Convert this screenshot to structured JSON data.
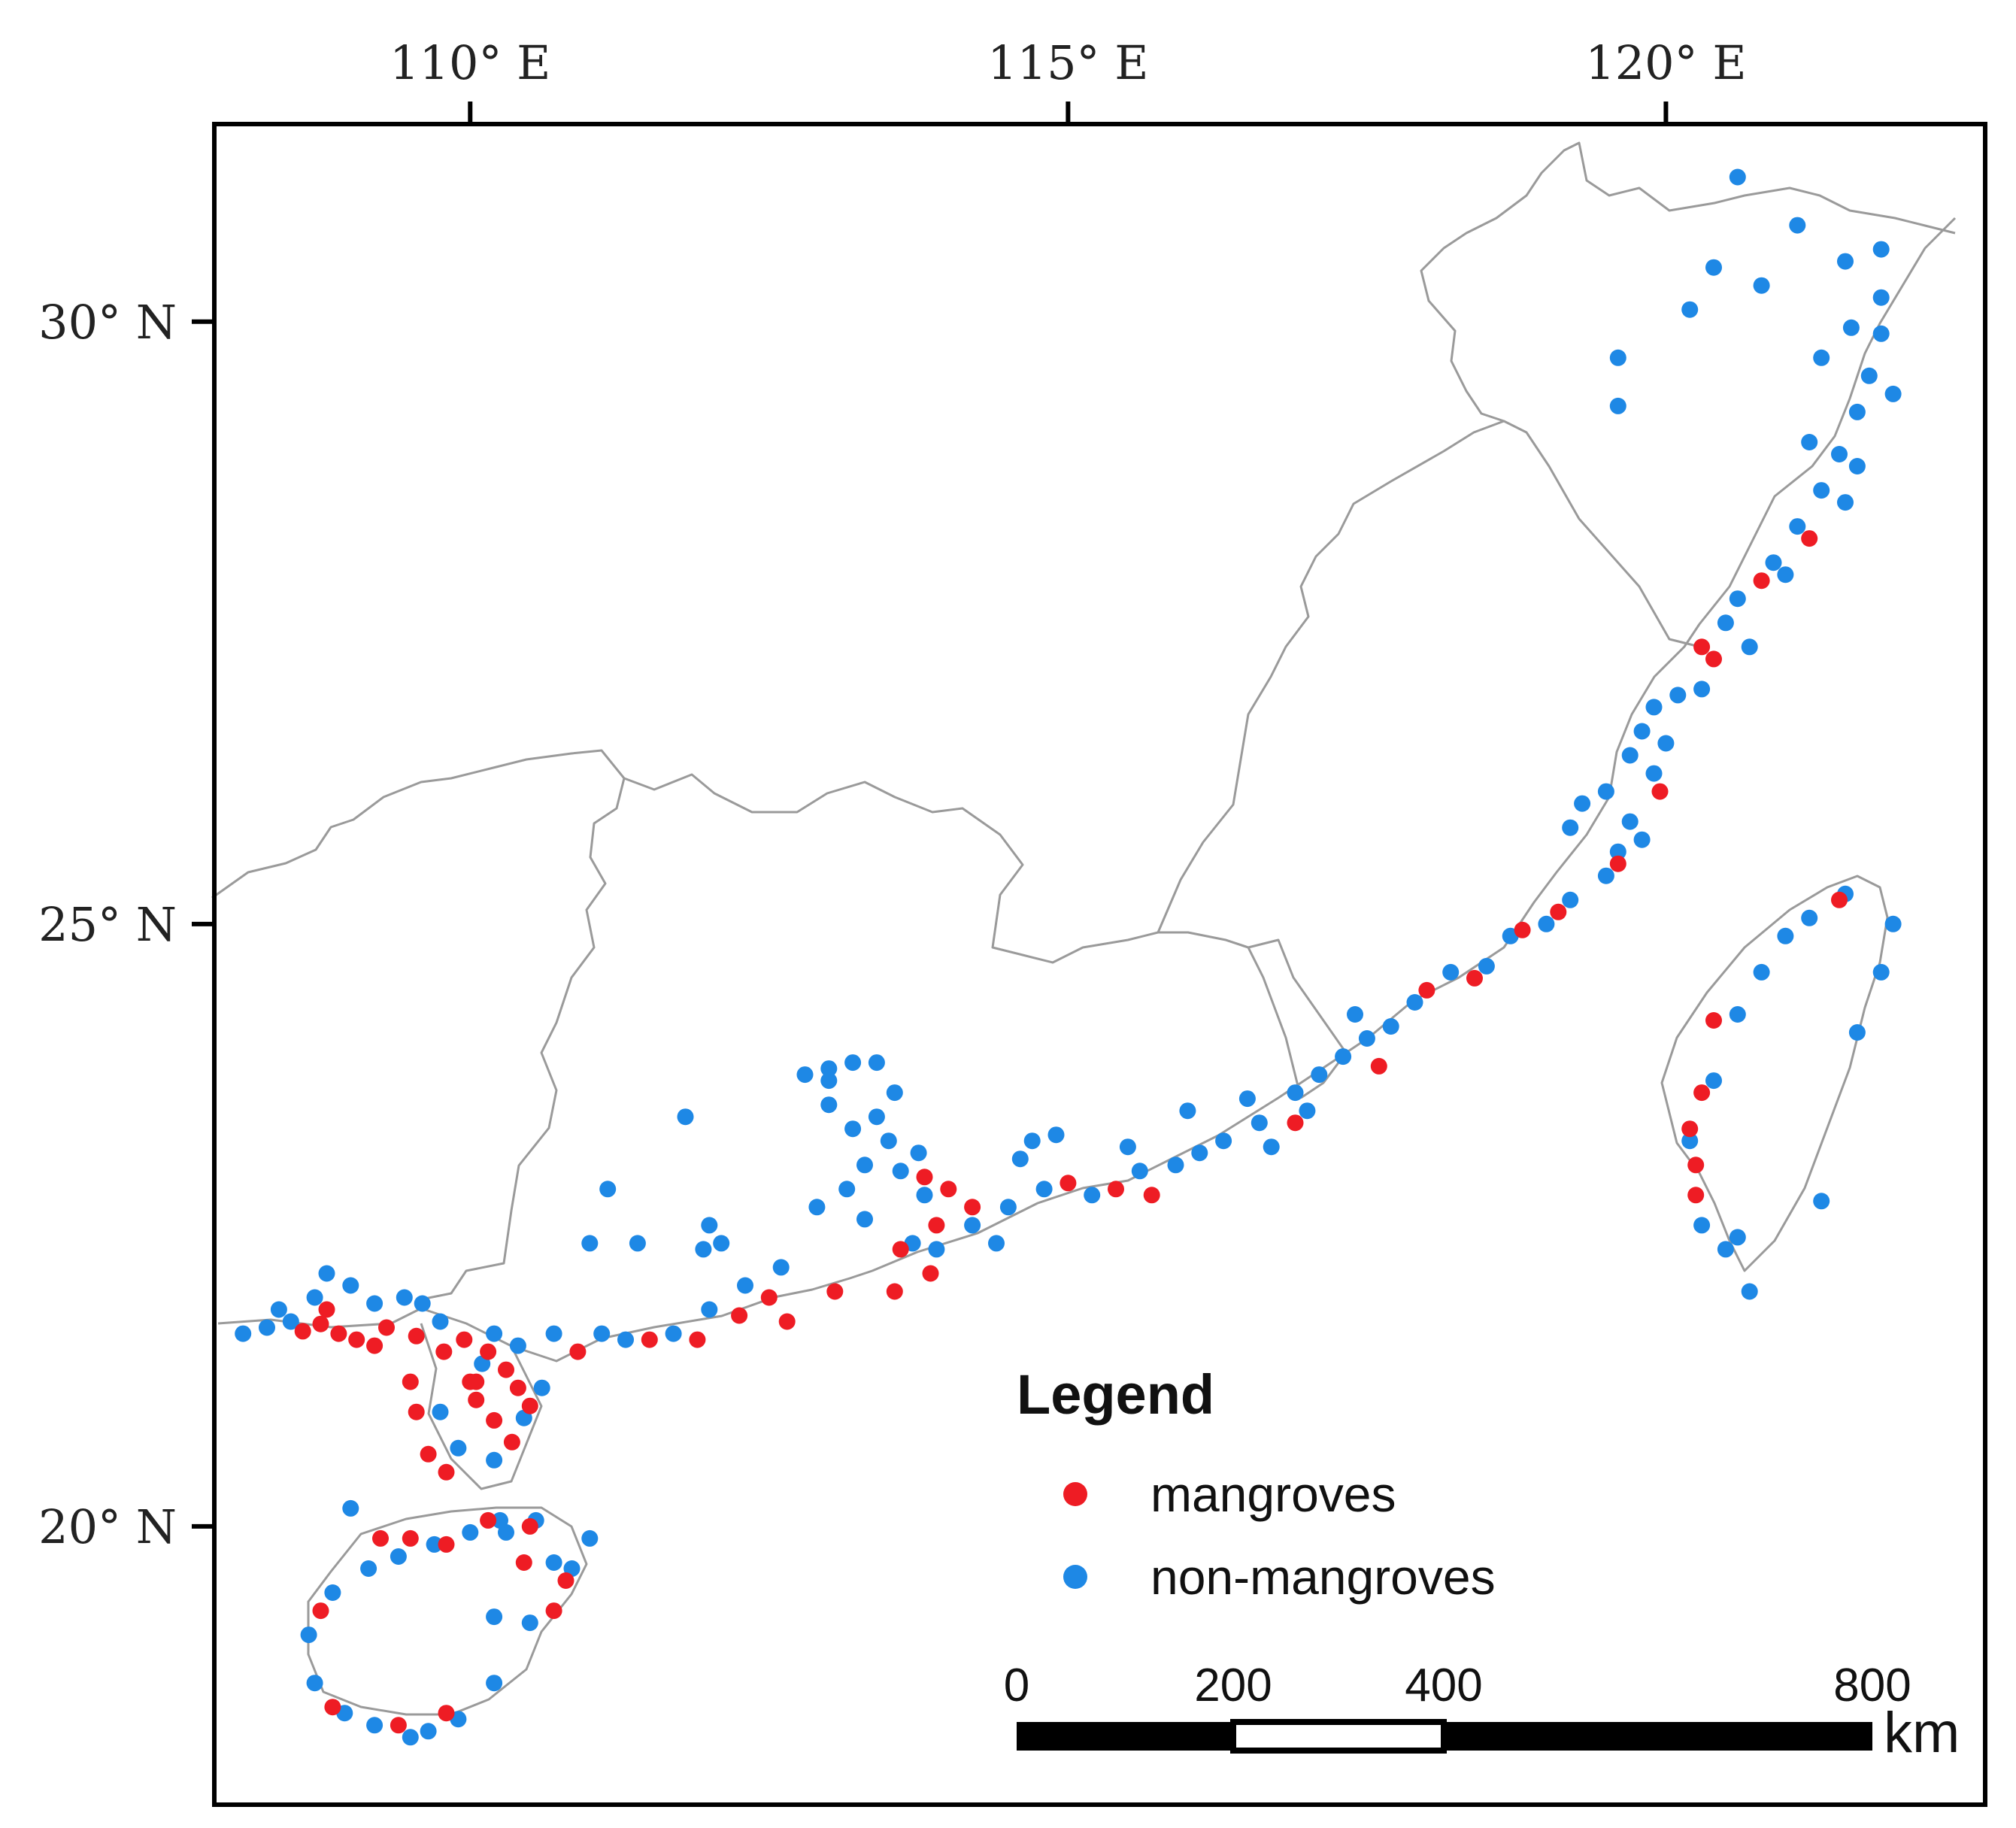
{
  "map": {
    "lon_ticks": [
      {
        "lon": 110,
        "label": "110° E"
      },
      {
        "lon": 115,
        "label": "115° E"
      },
      {
        "lon": 120,
        "label": "120° E"
      }
    ],
    "lat_ticks": [
      {
        "lat": 30,
        "label": "30° N"
      },
      {
        "lat": 25,
        "label": "25° N"
      },
      {
        "lat": 20,
        "label": "20° N"
      }
    ],
    "extent": {
      "lon_min": 107.86,
      "lon_max": 122.67,
      "lat_min": 17.69,
      "lat_max": 31.64
    },
    "colors": {
      "mangroves": "#ee1c24",
      "non_mangroves": "#1e88e5",
      "boundary": "#9a9a9a",
      "frame": "#000000"
    }
  },
  "legend": {
    "title": "Legend",
    "items": [
      {
        "label": "mangroves",
        "color": "#ee1c24"
      },
      {
        "label": "non-mangroves",
        "color": "#1e88e5"
      }
    ]
  },
  "scale_bar": {
    "ticks": [
      "0",
      "200",
      "400",
      "800"
    ],
    "unit": "km"
  },
  "points": {
    "mangroves": [
      [
        108.6,
        21.62
      ],
      [
        108.75,
        21.68
      ],
      [
        108.9,
        21.6
      ],
      [
        109.05,
        21.55
      ],
      [
        109.3,
        21.65
      ],
      [
        109.55,
        21.58
      ],
      [
        109.78,
        21.45
      ],
      [
        110.15,
        21.45
      ],
      [
        109.5,
        21.2
      ],
      [
        109.55,
        20.95
      ],
      [
        109.65,
        20.6
      ],
      [
        109.8,
        20.45
      ],
      [
        110.05,
        21.05
      ],
      [
        110.2,
        20.88
      ],
      [
        110.35,
        20.7
      ],
      [
        110.5,
        21.0
      ],
      [
        110.0,
        21.2
      ],
      [
        110.3,
        21.3
      ],
      [
        110.4,
        21.15
      ],
      [
        109.95,
        21.55
      ],
      [
        110.9,
        21.45
      ],
      [
        111.5,
        21.55
      ],
      [
        111.9,
        21.55
      ],
      [
        112.25,
        21.75
      ],
      [
        112.5,
        21.9
      ],
      [
        112.65,
        21.7
      ],
      [
        113.05,
        21.95
      ],
      [
        113.55,
        21.95
      ],
      [
        113.6,
        22.3
      ],
      [
        113.85,
        22.1
      ],
      [
        113.9,
        22.5
      ],
      [
        114.0,
        22.8
      ],
      [
        113.8,
        22.9
      ],
      [
        114.2,
        22.65
      ],
      [
        115.0,
        22.85
      ],
      [
        115.4,
        22.8
      ],
      [
        115.7,
        22.75
      ],
      [
        116.9,
        23.35
      ],
      [
        117.6,
        23.82
      ],
      [
        118.0,
        24.45
      ],
      [
        118.4,
        24.55
      ],
      [
        118.8,
        24.95
      ],
      [
        119.1,
        25.1
      ],
      [
        119.6,
        25.5
      ],
      [
        119.95,
        26.1
      ],
      [
        120.4,
        27.2
      ],
      [
        120.3,
        27.3
      ],
      [
        120.8,
        27.85
      ],
      [
        121.2,
        28.2
      ],
      [
        121.45,
        25.2
      ],
      [
        120.3,
        23.6
      ],
      [
        120.2,
        23.3
      ],
      [
        120.25,
        23.0
      ],
      [
        120.25,
        22.75
      ],
      [
        120.4,
        24.2
      ],
      [
        109.25,
        19.9
      ],
      [
        109.5,
        19.9
      ],
      [
        109.8,
        19.85
      ],
      [
        110.15,
        20.05
      ],
      [
        110.5,
        20.0
      ],
      [
        110.8,
        19.55
      ],
      [
        110.7,
        19.3
      ],
      [
        108.75,
        19.3
      ],
      [
        108.85,
        18.5
      ],
      [
        109.4,
        18.35
      ],
      [
        109.8,
        18.45
      ],
      [
        110.45,
        19.7
      ],
      [
        108.8,
        21.8
      ],
      [
        110.05,
        21.2
      ],
      [
        109.2,
        21.5
      ]
    ],
    "non_mangroves": [
      [
        108.1,
        21.6
      ],
      [
        108.3,
        21.65
      ],
      [
        108.5,
        21.7
      ],
      [
        108.4,
        21.8
      ],
      [
        108.7,
        21.9
      ],
      [
        109.0,
        22.0
      ],
      [
        108.8,
        22.1
      ],
      [
        109.2,
        21.85
      ],
      [
        109.45,
        21.9
      ],
      [
        109.6,
        21.85
      ],
      [
        109.75,
        21.7
      ],
      [
        110.2,
        21.6
      ],
      [
        110.4,
        21.5
      ],
      [
        110.1,
        21.35
      ],
      [
        110.45,
        20.9
      ],
      [
        110.6,
        21.15
      ],
      [
        110.2,
        20.55
      ],
      [
        109.9,
        20.65
      ],
      [
        109.75,
        20.95
      ],
      [
        110.7,
        21.6
      ],
      [
        111.1,
        21.6
      ],
      [
        111.3,
        21.55
      ],
      [
        111.7,
        21.6
      ],
      [
        112.0,
        21.8
      ],
      [
        112.3,
        22.0
      ],
      [
        112.6,
        22.15
      ],
      [
        112.1,
        22.35
      ],
      [
        111.95,
        22.3
      ],
      [
        112.0,
        22.5
      ],
      [
        111.4,
        22.35
      ],
      [
        111.0,
        22.35
      ],
      [
        111.15,
        22.8
      ],
      [
        111.8,
        23.4
      ],
      [
        112.8,
        23.75
      ],
      [
        113.0,
        23.8
      ],
      [
        113.2,
        23.85
      ],
      [
        113.4,
        23.85
      ],
      [
        113.0,
        23.5
      ],
      [
        113.2,
        23.3
      ],
      [
        113.5,
        23.2
      ],
      [
        113.3,
        23.0
      ],
      [
        113.6,
        22.95
      ],
      [
        113.75,
        23.1
      ],
      [
        113.8,
        22.75
      ],
      [
        114.2,
        22.5
      ],
      [
        114.4,
        22.35
      ],
      [
        114.5,
        22.65
      ],
      [
        114.6,
        23.05
      ],
      [
        114.8,
        22.8
      ],
      [
        115.2,
        22.75
      ],
      [
        115.6,
        22.95
      ],
      [
        115.9,
        23.0
      ],
      [
        116.1,
        23.1
      ],
      [
        116.3,
        23.2
      ],
      [
        116.6,
        23.35
      ],
      [
        116.0,
        23.45
      ],
      [
        116.5,
        23.55
      ],
      [
        116.9,
        23.6
      ],
      [
        117.1,
        23.75
      ],
      [
        117.3,
        23.9
      ],
      [
        117.5,
        24.05
      ],
      [
        117.7,
        24.15
      ],
      [
        117.9,
        24.35
      ],
      [
        118.2,
        24.6
      ],
      [
        118.5,
        24.65
      ],
      [
        118.7,
        24.9
      ],
      [
        119.0,
        25.0
      ],
      [
        119.2,
        25.2
      ],
      [
        119.5,
        25.4
      ],
      [
        119.6,
        25.6
      ],
      [
        119.8,
        25.7
      ],
      [
        119.5,
        26.1
      ],
      [
        119.7,
        26.4
      ],
      [
        119.8,
        26.6
      ],
      [
        119.9,
        26.8
      ],
      [
        120.1,
        26.9
      ],
      [
        120.3,
        26.95
      ],
      [
        120.5,
        27.5
      ],
      [
        120.6,
        27.7
      ],
      [
        120.9,
        28.0
      ],
      [
        121.1,
        28.3
      ],
      [
        121.3,
        28.6
      ],
      [
        121.45,
        28.9
      ],
      [
        121.6,
        29.25
      ],
      [
        121.7,
        29.55
      ],
      [
        121.8,
        29.9
      ],
      [
        121.8,
        30.2
      ],
      [
        121.5,
        30.5
      ],
      [
        121.1,
        30.8
      ],
      [
        120.6,
        31.2
      ],
      [
        120.8,
        30.3
      ],
      [
        120.2,
        30.1
      ],
      [
        119.6,
        29.7
      ],
      [
        119.6,
        29.3
      ],
      [
        121.2,
        29.0
      ],
      [
        121.9,
        29.4
      ],
      [
        120.3,
        22.5
      ],
      [
        120.5,
        22.3
      ],
      [
        120.6,
        22.4
      ],
      [
        120.7,
        21.95
      ],
      [
        120.2,
        23.2
      ],
      [
        120.4,
        23.7
      ],
      [
        120.6,
        24.25
      ],
      [
        120.8,
        24.6
      ],
      [
        121.0,
        24.9
      ],
      [
        121.2,
        25.05
      ],
      [
        121.5,
        25.25
      ],
      [
        121.9,
        25.0
      ],
      [
        121.8,
        24.6
      ],
      [
        121.6,
        24.1
      ],
      [
        121.3,
        22.7
      ],
      [
        109.65,
        18.3
      ],
      [
        109.9,
        18.4
      ],
      [
        110.2,
        18.7
      ],
      [
        110.5,
        19.2
      ],
      [
        110.7,
        19.7
      ],
      [
        110.55,
        20.05
      ],
      [
        110.3,
        19.95
      ],
      [
        110.0,
        19.95
      ],
      [
        109.7,
        19.85
      ],
      [
        109.4,
        19.75
      ],
      [
        109.15,
        19.65
      ],
      [
        108.85,
        19.45
      ],
      [
        108.65,
        19.1
      ],
      [
        108.7,
        18.7
      ],
      [
        108.95,
        18.45
      ],
      [
        109.2,
        18.35
      ],
      [
        109.5,
        18.25
      ],
      [
        110.2,
        19.25
      ],
      [
        110.25,
        20.05
      ],
      [
        111.0,
        19.9
      ],
      [
        110.85,
        19.65
      ],
      [
        109.0,
        20.15
      ],
      [
        113.4,
        23.4
      ],
      [
        113.0,
        23.7
      ],
      [
        113.55,
        23.6
      ],
      [
        113.3,
        22.55
      ],
      [
        113.15,
        22.8
      ],
      [
        112.9,
        22.65
      ],
      [
        113.7,
        22.35
      ],
      [
        113.9,
        22.3
      ],
      [
        114.7,
        23.2
      ],
      [
        114.9,
        23.25
      ],
      [
        115.5,
        23.15
      ],
      [
        116.7,
        23.15
      ],
      [
        117.0,
        23.45
      ],
      [
        117.4,
        24.25
      ],
      [
        119.2,
        25.8
      ],
      [
        119.7,
        25.85
      ],
      [
        119.3,
        26.0
      ],
      [
        119.9,
        26.25
      ],
      [
        120.0,
        26.5
      ],
      [
        120.7,
        27.3
      ],
      [
        121.0,
        27.9
      ],
      [
        121.5,
        28.5
      ],
      [
        121.6,
        28.8
      ],
      [
        121.3,
        29.7
      ],
      [
        121.55,
        29.95
      ],
      [
        120.4,
        30.45
      ],
      [
        121.8,
        30.6
      ]
    ]
  }
}
